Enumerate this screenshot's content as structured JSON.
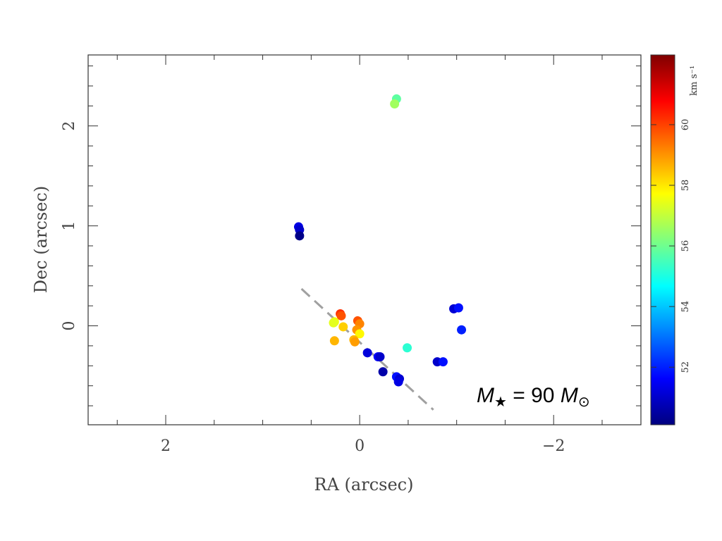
{
  "chart_data": {
    "type": "scatter",
    "xlabel": "RA (arcsec)",
    "ylabel": "Dec (arcsec)",
    "xlim": [
      2.8,
      -2.9
    ],
    "ylim": [
      -0.99,
      2.71
    ],
    "x_ticks": [
      "2",
      "0",
      "−2"
    ],
    "x_tick_values": [
      2,
      0,
      -2
    ],
    "y_ticks": [
      "0",
      "1",
      "2"
    ],
    "y_tick_values": [
      0,
      1,
      2
    ],
    "grid": false,
    "points": [
      {
        "x": -0.38,
        "y": 2.27,
        "v": 55.8
      },
      {
        "x": -0.36,
        "y": 2.22,
        "v": 56.6
      },
      {
        "x": 0.63,
        "y": 0.99,
        "v": 51.3
      },
      {
        "x": 0.62,
        "y": 0.96,
        "v": 51.0
      },
      {
        "x": 0.62,
        "y": 0.9,
        "v": 50.2
      },
      {
        "x": 0.2,
        "y": 0.12,
        "v": 60.2
      },
      {
        "x": 0.19,
        "y": 0.1,
        "v": 59.8
      },
      {
        "x": 0.26,
        "y": 0.04,
        "v": 57.6
      },
      {
        "x": 0.27,
        "y": 0.03,
        "v": 57.4
      },
      {
        "x": 0.17,
        "y": -0.01,
        "v": 58.3
      },
      {
        "x": 0.26,
        "y": -0.15,
        "v": 58.6
      },
      {
        "x": 0.02,
        "y": 0.05,
        "v": 59.8
      },
      {
        "x": 0.0,
        "y": 0.02,
        "v": 59.2
      },
      {
        "x": 0.03,
        "y": -0.04,
        "v": 59.0
      },
      {
        "x": 0.0,
        "y": -0.08,
        "v": 57.8
      },
      {
        "x": 0.06,
        "y": -0.14,
        "v": 58.6
      },
      {
        "x": 0.05,
        "y": -0.16,
        "v": 58.9
      },
      {
        "x": -0.08,
        "y": -0.27,
        "v": 51.2
      },
      {
        "x": -0.19,
        "y": -0.31,
        "v": 51.6
      },
      {
        "x": -0.21,
        "y": -0.31,
        "v": 51.0
      },
      {
        "x": -0.24,
        "y": -0.46,
        "v": 50.6
      },
      {
        "x": -0.38,
        "y": -0.51,
        "v": 51.8
      },
      {
        "x": -0.41,
        "y": -0.53,
        "v": 51.1
      },
      {
        "x": -0.4,
        "y": -0.56,
        "v": 51.3
      },
      {
        "x": -0.49,
        "y": -0.22,
        "v": 55.2
      },
      {
        "x": -0.8,
        "y": -0.36,
        "v": 51.0
      },
      {
        "x": -0.86,
        "y": -0.36,
        "v": 51.8
      },
      {
        "x": -0.97,
        "y": 0.17,
        "v": 51.1
      },
      {
        "x": -1.02,
        "y": 0.18,
        "v": 51.8
      },
      {
        "x": -1.05,
        "y": -0.04,
        "v": 52.0
      }
    ],
    "fit_line": {
      "x": [
        0.6,
        -0.76
      ],
      "y": [
        0.37,
        -0.84
      ],
      "style": "dashed",
      "color": "#a0a0a0"
    },
    "colorbar": {
      "label": "km s⁻¹",
      "range": [
        50.1,
        62.3
      ],
      "ticks": [
        "52",
        "54",
        "56",
        "58",
        "60"
      ],
      "tick_values": [
        52,
        54,
        56,
        58,
        60
      ],
      "colormap": "jet"
    },
    "annotation": {
      "text": "M★ = 90 M⊙"
    }
  }
}
